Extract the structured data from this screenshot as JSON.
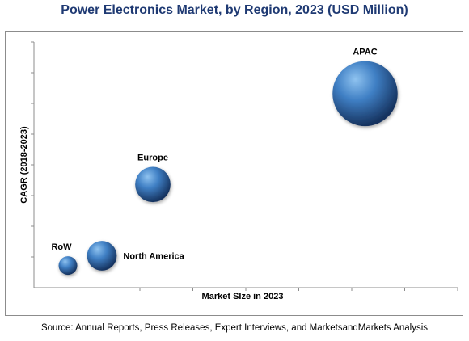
{
  "title": "Power Electronics Market, by Region, 2023 (USD Million)",
  "source": "Source: Annual Reports, Press Releases, Expert Interviews, and MarketsandMarkets Analysis",
  "colors": {
    "title": "#1f3a73",
    "bubble_light": "#8fc3f0",
    "bubble_mid": "#3f7fc4",
    "bubble_dark": "#16335f",
    "axis": "#8c8c8c"
  },
  "chart_data": {
    "type": "scatter",
    "title": "Power Electronics Market, by Region, 2023 (USD Million)",
    "xlabel": "Market SIze in 2023",
    "ylabel": "CAGR (2018-2023)",
    "xlim": [
      0,
      10
    ],
    "ylim": [
      0,
      10
    ],
    "grid": false,
    "legend": "none",
    "tick_labels": false,
    "points": [
      {
        "label": "RoW",
        "x": 0.8,
        "y": 0.9,
        "size": 1.0
      },
      {
        "label": "North America",
        "x": 1.6,
        "y": 1.3,
        "size": 1.6
      },
      {
        "label": "Europe",
        "x": 2.8,
        "y": 4.2,
        "size": 1.9
      },
      {
        "label": "APAC",
        "x": 7.8,
        "y": 7.9,
        "size": 3.5
      }
    ]
  }
}
